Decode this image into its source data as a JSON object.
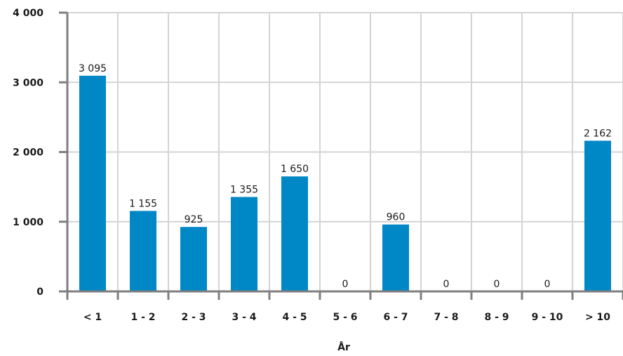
{
  "chart_data": {
    "type": "bar",
    "title": "",
    "xlabel": "År",
    "ylabel": "",
    "categories": [
      "< 1",
      "1 - 2",
      "2 - 3",
      "3 - 4",
      "4 - 5",
      "5 - 6",
      "6 - 7",
      "7 - 8",
      "8 - 9",
      "9 - 10",
      "> 10"
    ],
    "values": [
      3095,
      1155,
      925,
      1355,
      1650,
      0,
      960,
      0,
      0,
      0,
      2162
    ],
    "value_labels": [
      "3 095",
      "1 155",
      "925",
      "1 355",
      "1 650",
      "0",
      "960",
      "0",
      "0",
      "0",
      "2 162"
    ],
    "ylim": [
      0,
      4000
    ],
    "yticks": [
      0,
      1000,
      2000,
      3000,
      4000
    ],
    "ytick_labels": [
      "0",
      "1 000",
      "2 000",
      "3 000",
      "4 000"
    ],
    "grid": true,
    "legend": "none",
    "colors": {
      "bar": "#0087c6",
      "grid": "#d4d4d4",
      "axis": "#7f7f7f"
    }
  }
}
